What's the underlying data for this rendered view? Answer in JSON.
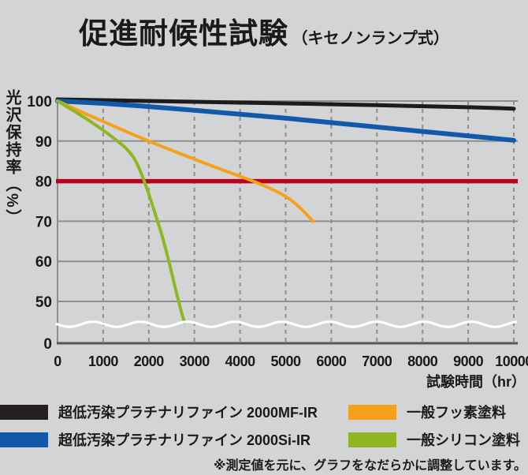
{
  "title": {
    "main": "促進耐候性試験",
    "sub": "（キセノンランプ式）"
  },
  "chart_data": {
    "type": "line",
    "title": "促進耐候性試験（キセノンランプ式）",
    "xlabel": "試験時間（hr）",
    "ylabel": "光沢保持率（%）",
    "x_ticks": [
      0,
      1000,
      2000,
      3000,
      4000,
      5000,
      6000,
      7000,
      8000,
      9000,
      10000
    ],
    "y_ticks": [
      100,
      90,
      80,
      70,
      60,
      50,
      0
    ],
    "xlim": [
      0,
      10000
    ],
    "ylim_shown": [
      50,
      100
    ],
    "axis_break_between": [
      0,
      50
    ],
    "grid": "on",
    "threshold_line": {
      "value": 80,
      "color": "#ba0223"
    },
    "series": [
      {
        "name": "超低汚染プラチナリファイン 2000MF-IR",
        "color": "#1c1c1c",
        "width": 5,
        "points": [
          [
            0,
            100.4
          ],
          [
            1000,
            100.2
          ],
          [
            2000,
            100.0
          ],
          [
            3000,
            99.8
          ],
          [
            4000,
            99.6
          ],
          [
            5000,
            99.4
          ],
          [
            6000,
            99.2
          ],
          [
            7000,
            98.95
          ],
          [
            8000,
            98.7
          ],
          [
            9000,
            98.45
          ],
          [
            10000,
            98.1
          ]
        ]
      },
      {
        "name": "超低汚染プラチナリファイン 2000Si-IR",
        "color": "#115aa9",
        "width": 6,
        "points": [
          [
            0,
            100
          ],
          [
            1000,
            99.4
          ],
          [
            2000,
            98.6
          ],
          [
            3000,
            97.7
          ],
          [
            4000,
            96.7
          ],
          [
            5000,
            95.7
          ],
          [
            6000,
            94.6
          ],
          [
            7000,
            93.5
          ],
          [
            8000,
            92.4
          ],
          [
            9000,
            91.3
          ],
          [
            10000,
            90.2
          ]
        ]
      },
      {
        "name": "一般フッ素塗料",
        "color": "#f5a11e",
        "width": 4,
        "points": [
          [
            0,
            100
          ],
          [
            500,
            97.4
          ],
          [
            1000,
            94.9
          ],
          [
            1500,
            92.4
          ],
          [
            2000,
            90.0
          ],
          [
            2500,
            87.7
          ],
          [
            3000,
            85.5
          ],
          [
            3500,
            83.3
          ],
          [
            4000,
            81.2
          ],
          [
            4500,
            79.0
          ],
          [
            5000,
            76.2
          ],
          [
            5300,
            73.5
          ],
          [
            5600,
            70
          ]
        ]
      },
      {
        "name": "一般シリコン塗料",
        "color": "#90b722",
        "width": 4,
        "points": [
          [
            0,
            100
          ],
          [
            400,
            97.2
          ],
          [
            800,
            94.3
          ],
          [
            1200,
            91.0
          ],
          [
            1500,
            88.2
          ],
          [
            1700,
            85.3
          ],
          [
            1850,
            81.5
          ],
          [
            2000,
            76.8
          ],
          [
            2150,
            71.5
          ],
          [
            2300,
            66.0
          ],
          [
            2450,
            59.5
          ],
          [
            2600,
            52.5
          ],
          [
            2700,
            48.0
          ],
          [
            2780,
            44.8
          ]
        ]
      }
    ]
  },
  "legend": {
    "items": [
      {
        "label": "超低汚染プラチナリファイン 2000MF-IR",
        "color": "#231f20"
      },
      {
        "label": "超低汚染プラチナリファイン 2000Si-IR",
        "color": "#1159a8"
      },
      {
        "label": "一般フッ素塗料",
        "color": "#f5a11e"
      },
      {
        "label": "一般シリコン塗料",
        "color": "#90b722"
      }
    ]
  },
  "note": "※測定値を元に、グラフをなだらかに調整しています。",
  "colors": {
    "background": "#d3d4d5",
    "gridline": "#8e8e8e",
    "axis": "#565656",
    "break_wave": "#ffffff",
    "text": "#1a1a1a"
  }
}
